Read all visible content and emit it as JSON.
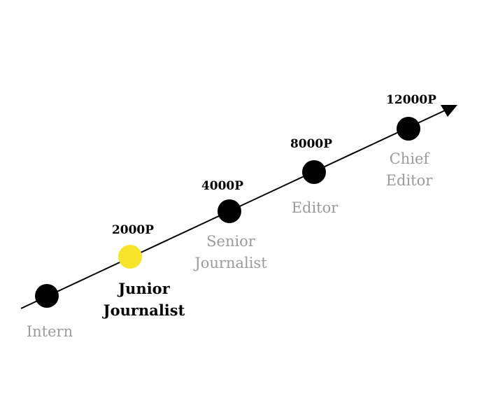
{
  "colors": {
    "line": "#000000",
    "node": "#000000",
    "current_node": "#f6e42a",
    "inactive_text": "#9b9b9b",
    "active_text": "#000000"
  },
  "stages": [
    {
      "name_lines": [
        "Intern"
      ],
      "points": "",
      "current": false
    },
    {
      "name_lines": [
        "Junior",
        "Journalist"
      ],
      "points": "2000P",
      "current": true
    },
    {
      "name_lines": [
        "Senior",
        "Journalist"
      ],
      "points": "4000P",
      "current": false
    },
    {
      "name_lines": [
        "Editor"
      ],
      "points": "8000P",
      "current": false
    },
    {
      "name_lines": [
        "Chief",
        "Editor"
      ],
      "points": "12000P",
      "current": false
    }
  ]
}
